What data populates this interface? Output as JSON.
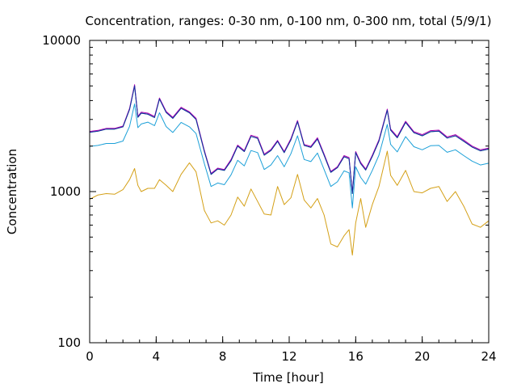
{
  "chart_data": {
    "type": "line",
    "title": "Concentration, ranges: 0-30 nm, 0-100 nm, 0-300 nm, total (5/9/1)",
    "xlabel": "Time [hour]",
    "ylabel": "Concentration",
    "xlim": [
      0,
      24
    ],
    "ylim": [
      100,
      10000
    ],
    "yscale": "log",
    "grid": false,
    "legend": "none",
    "x_ticks": [
      0,
      4,
      8,
      12,
      16,
      20,
      24
    ],
    "y_ticks": [
      100,
      1000,
      10000
    ],
    "x_minor_step": 1,
    "x": [
      0,
      0.5,
      1,
      1.5,
      2,
      2.4,
      2.7,
      2.9,
      3.1,
      3.5,
      3.9,
      4.2,
      4.6,
      5.0,
      5.5,
      6.0,
      6.4,
      6.9,
      7.3,
      7.7,
      8.1,
      8.5,
      8.9,
      9.3,
      9.7,
      10.1,
      10.5,
      10.9,
      11.3,
      11.7,
      12.1,
      12.5,
      12.9,
      13.3,
      13.7,
      14.1,
      14.5,
      14.9,
      15.3,
      15.6,
      15.8,
      16.0,
      16.3,
      16.6,
      17.0,
      17.4,
      17.9,
      18.1,
      18.5,
      19.0,
      19.5,
      20.0,
      20.5,
      21.0,
      21.5,
      22.0,
      22.5,
      23.0,
      23.5,
      24.0
    ],
    "series": [
      {
        "color": "#d4a017",
        "values": [
          890,
          950,
          970,
          960,
          1030,
          1200,
          1420,
          1100,
          1000,
          1050,
          1050,
          1200,
          1100,
          1000,
          1300,
          1550,
          1350,
          750,
          620,
          640,
          600,
          700,
          920,
          800,
          1040,
          860,
          710,
          700,
          1080,
          820,
          910,
          1300,
          880,
          780,
          900,
          700,
          450,
          430,
          510,
          560,
          380,
          620,
          900,
          580,
          820,
          1080,
          1850,
          1280,
          1100,
          1380,
          1000,
          980,
          1050,
          1080,
          860,
          1000,
          800,
          610,
          580,
          640
        ]
      },
      {
        "color": "#1ca0d8",
        "values": [
          1990,
          2020,
          2080,
          2080,
          2160,
          2700,
          3800,
          2650,
          2800,
          2880,
          2730,
          3320,
          2690,
          2460,
          2870,
          2680,
          2420,
          1530,
          1080,
          1140,
          1110,
          1290,
          1610,
          1480,
          1870,
          1810,
          1400,
          1500,
          1730,
          1460,
          1780,
          2340,
          1630,
          1580,
          1800,
          1400,
          1080,
          1160,
          1370,
          1330,
          780,
          1460,
          1240,
          1120,
          1380,
          1740,
          2780,
          2050,
          1830,
          2310,
          1980,
          1890,
          2010,
          2020,
          1820,
          1890,
          1730,
          1590,
          1500,
          1540
        ]
      },
      {
        "color": "#008b6a",
        "values": [
          2470,
          2510,
          2590,
          2590,
          2680,
          3500,
          5000,
          3100,
          3300,
          3250,
          3090,
          4100,
          3340,
          3050,
          3560,
          3320,
          3000,
          1840,
          1300,
          1410,
          1380,
          1600,
          2000,
          1840,
          2320,
          2250,
          1740,
          1870,
          2150,
          1810,
          2200,
          2900,
          2020,
          1960,
          2230,
          1740,
          1340,
          1440,
          1700,
          1650,
          970,
          1810,
          1530,
          1390,
          1710,
          2160,
          3450,
          2550,
          2270,
          2870,
          2450,
          2340,
          2490,
          2510,
          2260,
          2340,
          2150,
          1970,
          1860,
          1910
        ]
      },
      {
        "color": "#b000b0",
        "values": [
          2500,
          2540,
          2620,
          2620,
          2710,
          3550,
          5100,
          3150,
          3350,
          3300,
          3140,
          4160,
          3390,
          3100,
          3610,
          3370,
          3050,
          1870,
          1320,
          1430,
          1400,
          1630,
          2030,
          1870,
          2360,
          2290,
          1770,
          1900,
          2180,
          1840,
          2240,
          2950,
          2050,
          1990,
          2270,
          1770,
          1360,
          1460,
          1730,
          1680,
          990,
          1840,
          1560,
          1410,
          1740,
          2200,
          3510,
          2590,
          2310,
          2920,
          2490,
          2380,
          2530,
          2550,
          2300,
          2380,
          2190,
          2000,
          1890,
          1940
        ]
      },
      {
        "color": "#1030a0",
        "values": [
          2470,
          2510,
          2590,
          2590,
          2680,
          3500,
          5000,
          3100,
          3300,
          3250,
          3090,
          4100,
          3340,
          3050,
          3560,
          3320,
          3000,
          1840,
          1300,
          1410,
          1380,
          1600,
          2000,
          1840,
          2320,
          2250,
          1740,
          1870,
          2150,
          1810,
          2200,
          2900,
          2020,
          1960,
          2230,
          1740,
          1340,
          1440,
          1700,
          1650,
          970,
          1810,
          1530,
          1390,
          1710,
          2160,
          3450,
          2550,
          2270,
          2870,
          2450,
          2340,
          2490,
          2510,
          2260,
          2340,
          2150,
          1970,
          1860,
          1910
        ]
      }
    ]
  }
}
